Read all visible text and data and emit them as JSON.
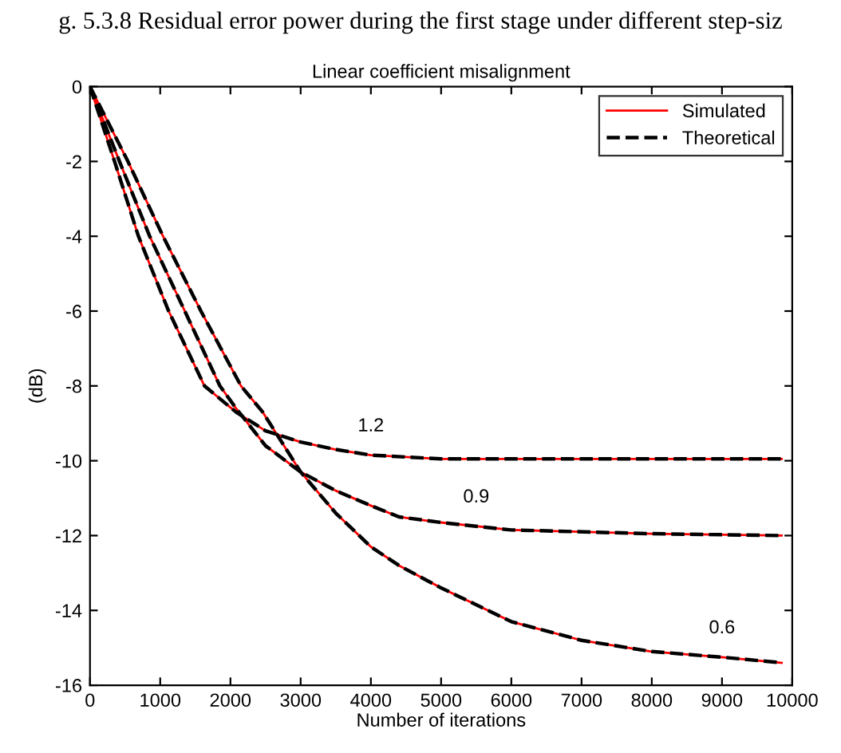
{
  "chart_data": {
    "type": "line",
    "title": "Linear coefficient misalignment",
    "xlabel": "Number of iterations",
    "ylabel": "(dB)",
    "xlim": [
      0,
      10000
    ],
    "ylim": [
      -16,
      0
    ],
    "xticks": [
      0,
      1000,
      2000,
      3000,
      4000,
      5000,
      6000,
      7000,
      8000,
      9000,
      10000
    ],
    "yticks": [
      -16,
      -14,
      -12,
      -10,
      -8,
      -6,
      -4,
      -2,
      0
    ],
    "grid": false,
    "legend": "top right",
    "annotations": [
      {
        "text": "1.2",
        "x": 4000,
        "y": -9.85
      },
      {
        "text": "0.9",
        "x": 5500,
        "y": -11.75
      },
      {
        "text": "0.6",
        "x": 9000,
        "y": -15.25
      },
      "g. 5.3.8 Residual error power during the first stage under different step-siz"
    ],
    "series": [
      {
        "name": "Simulated",
        "color": "#ff0000",
        "line_style": "solid",
        "x": [
          0,
          350,
          690,
          1120,
          1630,
          2080,
          2500,
          3000,
          3500,
          4000,
          5000,
          6000,
          8000,
          9850
        ],
        "values": [
          0,
          -2,
          -4,
          -6,
          -8,
          -8.7,
          -9.2,
          -9.5,
          -9.7,
          -9.85,
          -9.95,
          -9.95,
          -9.95,
          -9.95
        ]
      },
      {
        "color": "#ff0000",
        "line_style": "solid",
        "x": [
          0,
          420,
          850,
          1350,
          1850,
          2080,
          2500,
          3000,
          3500,
          4000,
          4400,
          5000,
          6000,
          8000,
          9850
        ],
        "values": [
          0,
          -2,
          -4,
          -6,
          -8,
          -8.6,
          -9.6,
          -10.3,
          -10.8,
          -11.2,
          -11.5,
          -11.65,
          -11.85,
          -11.95,
          -12
        ]
      },
      {
        "color": "#ff0000",
        "line_style": "solid",
        "x": [
          0,
          540,
          1040,
          1580,
          2150,
          2460,
          3000,
          3500,
          4000,
          4400,
          5000,
          6000,
          7000,
          8000,
          9000,
          9850
        ],
        "values": [
          0,
          -2,
          -4,
          -6,
          -8,
          -8.7,
          -10.3,
          -11.4,
          -12.3,
          -12.8,
          -13.4,
          -14.3,
          -14.8,
          -15.1,
          -15.25,
          -15.4
        ]
      },
      {
        "name": "Theoretical",
        "color": "#000000",
        "line_style": "dashed",
        "x": [
          0,
          350,
          690,
          1120,
          1630,
          2080,
          2500,
          3000,
          3500,
          4000,
          5000,
          6000,
          8000,
          9850
        ],
        "values": [
          0,
          -2,
          -4,
          -6,
          -8,
          -8.7,
          -9.2,
          -9.5,
          -9.7,
          -9.85,
          -9.95,
          -9.95,
          -9.95,
          -9.95
        ]
      },
      {
        "color": "#000000",
        "line_style": "dashed",
        "x": [
          0,
          420,
          850,
          1350,
          1850,
          2080,
          2500,
          3000,
          3500,
          4000,
          4400,
          5000,
          6000,
          8000,
          9850
        ],
        "values": [
          0,
          -2,
          -4,
          -6,
          -8,
          -8.6,
          -9.6,
          -10.3,
          -10.8,
          -11.2,
          -11.5,
          -11.65,
          -11.85,
          -11.95,
          -12
        ]
      },
      {
        "color": "#000000",
        "line_style": "dashed",
        "x": [
          0,
          540,
          1040,
          1580,
          2150,
          2460,
          3000,
          3500,
          4000,
          4400,
          5000,
          6000,
          7000,
          8000,
          9000,
          9850
        ],
        "values": [
          0,
          -2,
          -4,
          -6,
          -8,
          -8.7,
          -10.3,
          -11.4,
          -12.3,
          -12.8,
          -13.4,
          -14.3,
          -14.8,
          -15.1,
          -15.25,
          -15.4
        ]
      }
    ]
  }
}
